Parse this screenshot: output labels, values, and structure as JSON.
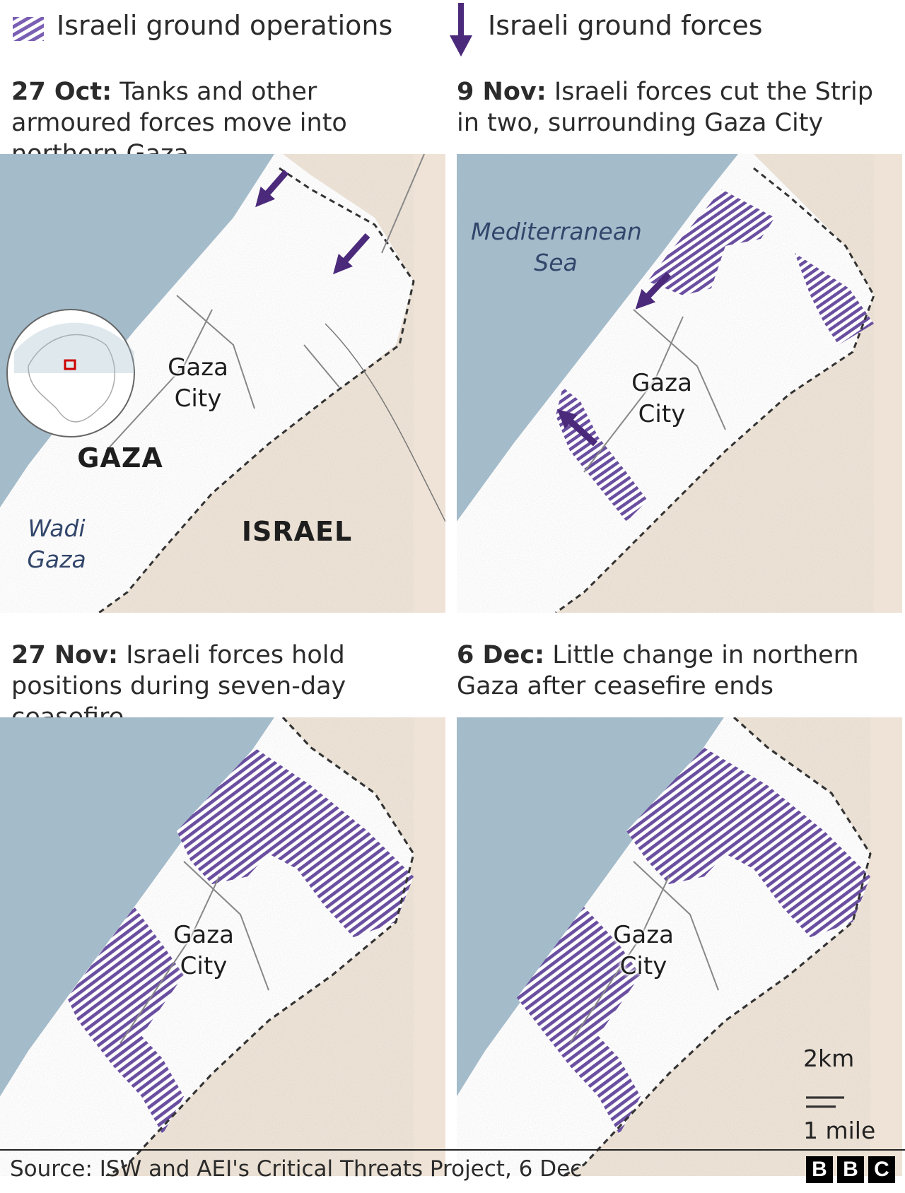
{
  "legend": {
    "operations_label": "Israeli ground operations",
    "forces_label": "Israeli ground forces",
    "hatch_color": "#6a4fa0",
    "arrow_color": "#4b2a7b"
  },
  "panels": [
    {
      "date": "27 Oct:",
      "text": "Tanks and other armoured forces move into northern Gaza"
    },
    {
      "date": "9 Nov:",
      "text": "Israeli forces cut the Strip in two, surrounding Gaza City"
    },
    {
      "date": "27 Nov:",
      "text": "Israeli forces hold positions during seven-day ceasefire"
    },
    {
      "date": "6 Dec:",
      "text": "Little change in northern Gaza after ceasefire ends"
    }
  ],
  "labels": {
    "gaza_city_line1": "Gaza",
    "gaza_city_line2": "City",
    "gaza_region": "GAZA",
    "israel_region": "ISRAEL",
    "wadi_line1": "Wadi",
    "wadi_line2": "Gaza",
    "sea_line1": "Mediterranean",
    "sea_line2": "Sea"
  },
  "scale": {
    "km": "2km",
    "miles": "1 mile"
  },
  "footer": {
    "source": "Source: ISW and AEI's Critical Threats Project, 6 Dec",
    "logo": [
      "B",
      "B",
      "C"
    ]
  },
  "colors": {
    "sea": "#a3bccc",
    "israel": "#eee3d6",
    "gaza": "#ffffff",
    "hatch": "#6a4fa0",
    "arrow": "#4b2a7b"
  }
}
